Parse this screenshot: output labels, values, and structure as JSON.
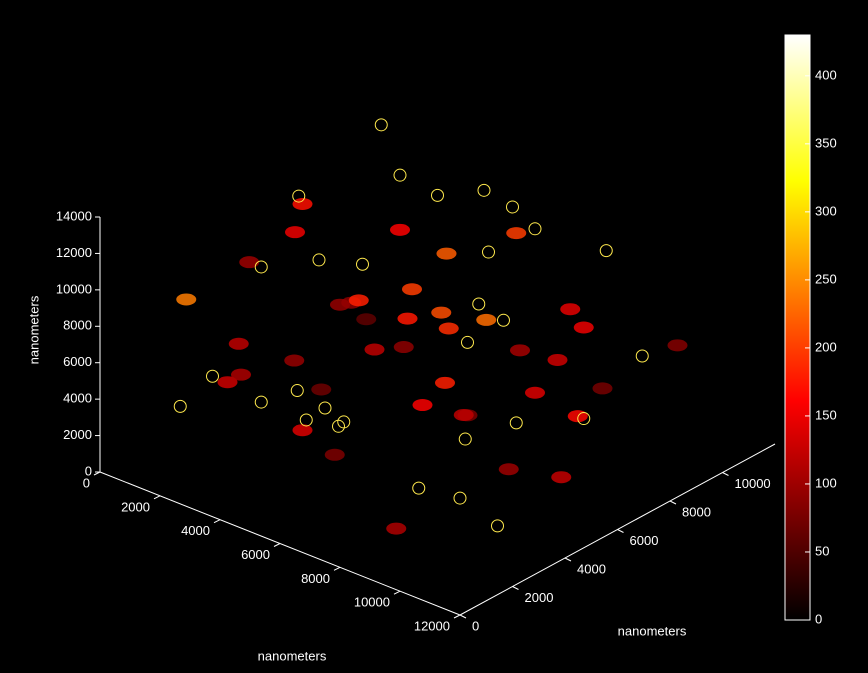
{
  "chart_data": {
    "type": "scatter3d",
    "xlabel": "nanometers",
    "ylabel": "nanometers",
    "zlabel": "nanometers",
    "xlim": [
      0,
      12000
    ],
    "ylim": [
      0,
      12000
    ],
    "zlim": [
      0,
      14000
    ],
    "xticks": [
      0,
      2000,
      4000,
      6000,
      8000,
      10000,
      12000
    ],
    "yticks": [
      0,
      2000,
      4000,
      6000,
      8000,
      10000
    ],
    "zticks": [
      0,
      2000,
      4000,
      6000,
      8000,
      10000,
      12000,
      14000
    ],
    "clim": [
      0,
      430
    ],
    "cticks": [
      0,
      50,
      100,
      150,
      200,
      250,
      300,
      350,
      400
    ],
    "colormap": "hot",
    "blobs": {
      "x": [
        2000,
        3000,
        4000,
        5000,
        6000,
        7000,
        8000,
        9000,
        10000,
        11000,
        1500,
        2500,
        3500,
        4500,
        5500,
        6500,
        7500,
        8500,
        9500,
        10500,
        1000,
        3000,
        5000,
        7000,
        9000,
        11000,
        2000,
        4000,
        6000,
        8000,
        10000,
        1200,
        3400,
        5600,
        7800,
        9800,
        600,
        2800,
        5200,
        7400
      ],
      "y": [
        3000,
        8000,
        5000,
        2000,
        9000,
        6000,
        4000,
        1000,
        7000,
        3000,
        6000,
        2000,
        9000,
        4000,
        7000,
        1000,
        8000,
        5000,
        3000,
        10000,
        9000,
        4000,
        6000,
        8000,
        2000,
        5000,
        1000,
        7000,
        3000,
        10000,
        6000,
        4000,
        8000,
        1000,
        9000,
        7000,
        5000,
        10000,
        3000,
        2000
      ],
      "z": [
        6000,
        9000,
        8000,
        4000,
        10000,
        3000,
        7000,
        2000,
        9000,
        5000,
        11000,
        5000,
        4000,
        9000,
        6000,
        8000,
        3000,
        10000,
        7000,
        6000,
        2000,
        12000,
        7000,
        5000,
        8000,
        3000,
        10000,
        4000,
        11000,
        2000,
        8000,
        3000,
        6000,
        9000,
        7000,
        4000,
        8000,
        6000,
        2000,
        10000
      ],
      "values": [
        120,
        160,
        90,
        140,
        200,
        80,
        180,
        110,
        150,
        100,
        170,
        130,
        210,
        95,
        190,
        70,
        140,
        230,
        120,
        85,
        60,
        150,
        175,
        105,
        160,
        125,
        240,
        90,
        180,
        75,
        130,
        110,
        200,
        95,
        145,
        165,
        100,
        220,
        80,
        120
      ]
    },
    "markers": {
      "color": "#ffe94d",
      "x": [
        1000,
        2000,
        3000,
        4000,
        5000,
        6000,
        7000,
        8000,
        9000,
        10000,
        1500,
        3500,
        5500,
        7500,
        9500,
        11500,
        2500,
        4500,
        6500,
        8500,
        500,
        2200,
        4200,
        6200,
        8200,
        10200,
        1800,
        3800,
        5800,
        7800
      ],
      "y": [
        5000,
        2000,
        8000,
        4000,
        10000,
        1000,
        6000,
        3000,
        9000,
        7000,
        9000,
        6000,
        3000,
        8000,
        5000,
        2000,
        10000,
        1000,
        7000,
        4000,
        7000,
        5000,
        10000,
        2000,
        6000,
        9000,
        1000,
        4000,
        8000,
        5000
      ],
      "z": [
        8000,
        5000,
        12000,
        3000,
        10000,
        6000,
        7000,
        2000,
        11000,
        4000,
        13000,
        9000,
        4000,
        12000,
        5000,
        3000,
        9000,
        6000,
        8000,
        1000,
        10000,
        2000,
        7000,
        5000,
        9000,
        6000,
        4000,
        11000,
        13000,
        3000
      ]
    }
  }
}
